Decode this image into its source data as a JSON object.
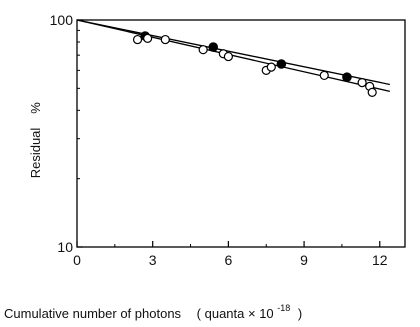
{
  "chart_data": {
    "type": "scatter",
    "title": "",
    "xlabel": "Cumulative number of photons",
    "xlabel_unit_prefix": "( quanta ×  10",
    "xlabel_unit_exp": "-18",
    "xlabel_unit_suffix": ")",
    "ylabel_word": "Residual",
    "ylabel_unit": "%",
    "x_scale": "linear",
    "y_scale": "log",
    "xlim": [
      0,
      13
    ],
    "ylim": [
      10,
      100
    ],
    "x_ticks": [
      0,
      3,
      6,
      9,
      12
    ],
    "x_tick_labels": [
      "0",
      "3",
      "6",
      "9",
      "12"
    ],
    "y_ticks": [
      10,
      100
    ],
    "y_tick_labels": [
      "10",
      "100"
    ],
    "grid": false,
    "series": [
      {
        "marker": "filled-circle",
        "color": "#000000",
        "points": [
          {
            "x": 2.7,
            "y": 85
          },
          {
            "x": 5.4,
            "y": 76
          },
          {
            "x": 8.1,
            "y": 64
          },
          {
            "x": 10.7,
            "y": 56
          }
        ],
        "fit_line": {
          "x": [
            0,
            12.4
          ],
          "y": [
            100,
            52
          ]
        }
      },
      {
        "marker": "open-circle",
        "color": "#000000",
        "points": [
          {
            "x": 2.4,
            "y": 82
          },
          {
            "x": 2.8,
            "y": 83
          },
          {
            "x": 3.5,
            "y": 82
          },
          {
            "x": 5.0,
            "y": 74
          },
          {
            "x": 5.8,
            "y": 71
          },
          {
            "x": 6.0,
            "y": 69
          },
          {
            "x": 7.5,
            "y": 60
          },
          {
            "x": 7.7,
            "y": 62
          },
          {
            "x": 9.8,
            "y": 57
          },
          {
            "x": 11.3,
            "y": 53
          },
          {
            "x": 11.6,
            "y": 51
          },
          {
            "x": 11.7,
            "y": 48
          }
        ],
        "fit_line": {
          "x": [
            0,
            12.4
          ],
          "y": [
            100,
            48.5
          ]
        }
      }
    ]
  }
}
